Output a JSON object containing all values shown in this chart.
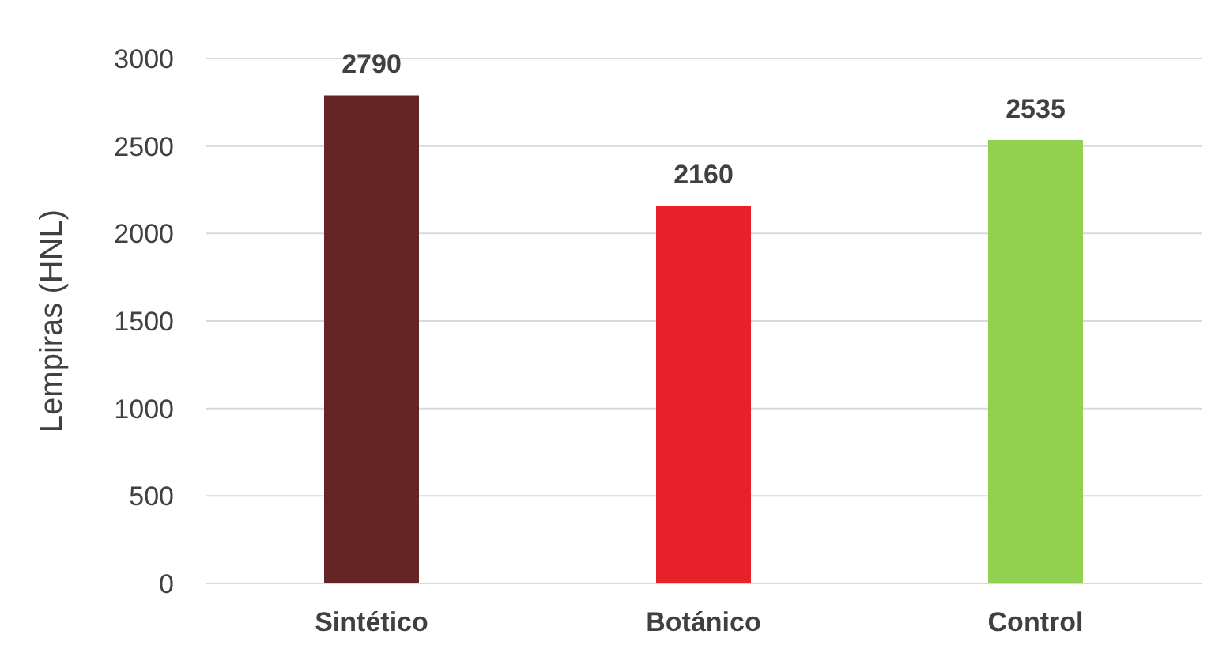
{
  "chart_data": {
    "type": "bar",
    "ylabel": "Lempiras (HNL)",
    "categories": [
      "Sintético",
      "Botánico",
      "Control"
    ],
    "values": [
      2790,
      2160,
      2535
    ],
    "colors": [
      "#662525",
      "#e8202a",
      "#92d050"
    ],
    "ylim": [
      0,
      3000
    ],
    "yticks": [
      0,
      500,
      1000,
      1500,
      2000,
      2500,
      3000
    ],
    "grid": "y",
    "data_labels": true,
    "legend": false
  }
}
